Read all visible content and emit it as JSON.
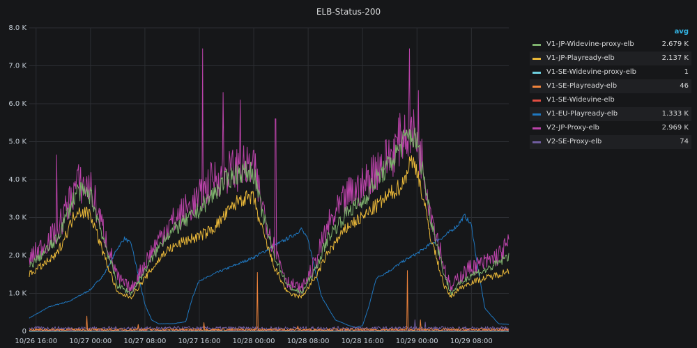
{
  "panel": {
    "title": "ELB-Status-200"
  },
  "legend": {
    "header": "avg",
    "items": [
      {
        "name": "V1-JP-Widevine-proxy-elb",
        "avg": "2.679 K",
        "color": "#7eb26d"
      },
      {
        "name": "V1-JP-Playready-elb",
        "avg": "2.137 K",
        "color": "#eab839"
      },
      {
        "name": "V1-SE-Widevine-proxy-elb",
        "avg": "1",
        "color": "#6ed0e0"
      },
      {
        "name": "V1-SE-Playready-elb",
        "avg": "46",
        "color": "#ef843c"
      },
      {
        "name": "V1-SE-Widevine-elb",
        "avg": "",
        "color": "#e24d42"
      },
      {
        "name": "V1-EU-Playready-elb",
        "avg": "1.333 K",
        "color": "#1f78c1"
      },
      {
        "name": "V2-JP-Proxy-elb",
        "avg": "2.969 K",
        "color": "#ba43a9"
      },
      {
        "name": "V2-SE-Proxy-elb",
        "avg": "74",
        "color": "#705da0"
      }
    ]
  },
  "chart_data": {
    "type": "line",
    "title": "ELB-Status-200",
    "ylim": [
      0,
      8000
    ],
    "yticks": [
      "0",
      "1.0 K",
      "2.0 K",
      "3.0 K",
      "4.0 K",
      "5.0 K",
      "6.0 K",
      "7.0 K",
      "8.0 K"
    ],
    "xticks": [
      "10/26 16:00",
      "10/27 00:00",
      "10/27 08:00",
      "10/27 16:00",
      "10/28 00:00",
      "10/28 08:00",
      "10/28 16:00",
      "10/29 00:00",
      "10/29 08:00"
    ],
    "x_hours": [
      0,
      8,
      16,
      24,
      32,
      40,
      48,
      56,
      64
    ],
    "xlim_hours": [
      -1,
      69.5
    ],
    "grid": true,
    "legend_position": "right",
    "series": [
      {
        "name": "V2-JP-Proxy-elb",
        "color": "#ba43a9",
        "x": [
          -1,
          3,
          6,
          8,
          10,
          12,
          14,
          16,
          19,
          22,
          24,
          26,
          28,
          30,
          32,
          33,
          35,
          37,
          39,
          41,
          43,
          46,
          48,
          50,
          52,
          54,
          55,
          56,
          57,
          58,
          60,
          61,
          62,
          64,
          66,
          68,
          69.5
        ],
        "y": [
          1900,
          2600,
          3900,
          3800,
          2600,
          1400,
          1100,
          1800,
          2700,
          3200,
          3500,
          4000,
          4200,
          4300,
          4300,
          3500,
          2200,
          1300,
          1100,
          1800,
          2800,
          3600,
          3800,
          4300,
          4600,
          5200,
          5300,
          5100,
          4300,
          3200,
          1700,
          1100,
          1400,
          1700,
          1800,
          2000,
          2300
        ],
        "spikes": [
          [
            3,
            4650
          ],
          [
            24.5,
            7450
          ],
          [
            27.5,
            6300
          ],
          [
            30,
            6100
          ],
          [
            35.2,
            5600
          ],
          [
            54.9,
            7450
          ],
          [
            56.2,
            6350
          ]
        ]
      },
      {
        "name": "V1-JP-Widevine-proxy-elb",
        "color": "#7eb26d",
        "x": [
          -1,
          3,
          6,
          8,
          10,
          12,
          14,
          16,
          19,
          22,
          24,
          26,
          28,
          30,
          32,
          33,
          35,
          37,
          39,
          41,
          43,
          46,
          48,
          50,
          52,
          54,
          55,
          56,
          57,
          58,
          60,
          61,
          62,
          64,
          66,
          68,
          69.5
        ],
        "y": [
          1700,
          2400,
          3700,
          3600,
          2400,
          1200,
          1000,
          1600,
          2500,
          2900,
          3200,
          3600,
          4000,
          4200,
          4200,
          3300,
          2000,
          1200,
          1000,
          1600,
          2500,
          3200,
          3400,
          4000,
          4400,
          5000,
          5200,
          5000,
          4100,
          3000,
          1500,
          1000,
          1200,
          1500,
          1600,
          1800,
          2000
        ],
        "spikes": []
      },
      {
        "name": "V1-JP-Playready-elb",
        "color": "#eab839",
        "x": [
          -1,
          3,
          6,
          8,
          10,
          12,
          14,
          16,
          19,
          22,
          24,
          26,
          28,
          30,
          32,
          33,
          35,
          37,
          39,
          41,
          43,
          46,
          48,
          50,
          52,
          54,
          55,
          56,
          57,
          58,
          60,
          61,
          62,
          64,
          66,
          68,
          69.5
        ],
        "y": [
          1500,
          2000,
          3200,
          3100,
          2000,
          1000,
          900,
          1400,
          2100,
          2400,
          2500,
          2700,
          3100,
          3500,
          3500,
          2800,
          1700,
          1000,
          900,
          1400,
          2100,
          2800,
          3000,
          3300,
          3600,
          3900,
          4500,
          4300,
          3400,
          2500,
          1200,
          900,
          1100,
          1300,
          1400,
          1500,
          1600
        ],
        "spikes": []
      },
      {
        "name": "V1-EU-Playready-elb",
        "color": "#1f78c1",
        "x": [
          -1,
          2,
          5,
          8,
          10,
          12,
          13,
          14,
          15,
          16,
          17,
          18,
          20,
          22,
          23,
          24,
          25,
          26,
          28,
          30,
          32,
          34,
          36,
          38,
          39,
          40,
          42,
          44,
          46,
          47,
          48,
          49,
          50,
          52,
          54,
          56,
          58,
          60,
          62,
          63,
          64,
          65,
          66,
          68,
          69.5
        ],
        "y": [
          350,
          650,
          800,
          1100,
          1500,
          2200,
          2450,
          2300,
          1500,
          700,
          300,
          200,
          200,
          250,
          900,
          1350,
          1400,
          1500,
          1650,
          1800,
          1950,
          2150,
          2350,
          2550,
          2700,
          2400,
          900,
          300,
          150,
          100,
          150,
          700,
          1400,
          1600,
          1850,
          2050,
          2300,
          2500,
          2800,
          3050,
          2800,
          1600,
          600,
          200,
          180
        ],
        "spikes": []
      },
      {
        "name": "V1-SE-Playready-elb",
        "color": "#ef843c",
        "x": [
          -1,
          69.5
        ],
        "y": [
          40,
          40
        ],
        "spikes": [
          [
            7.5,
            400
          ],
          [
            15,
            180
          ],
          [
            24.7,
            230
          ],
          [
            32.5,
            1550
          ],
          [
            38.5,
            140
          ],
          [
            54.6,
            1600
          ],
          [
            56.5,
            300
          ]
        ]
      },
      {
        "name": "V2-SE-Proxy-elb",
        "color": "#705da0",
        "x": [
          -1,
          69.5
        ],
        "y": [
          70,
          70
        ],
        "spikes": [
          [
            55.7,
            300
          ],
          [
            57.2,
            240
          ]
        ]
      },
      {
        "name": "V1-SE-Widevine-proxy-elb",
        "color": "#6ed0e0",
        "x": [
          -1,
          69.5
        ],
        "y": [
          1,
          1
        ],
        "spikes": []
      },
      {
        "name": "V1-SE-Widevine-elb",
        "color": "#e24d42",
        "x": [
          -1,
          69.5
        ],
        "y": [
          15,
          15
        ],
        "spikes": []
      }
    ]
  }
}
